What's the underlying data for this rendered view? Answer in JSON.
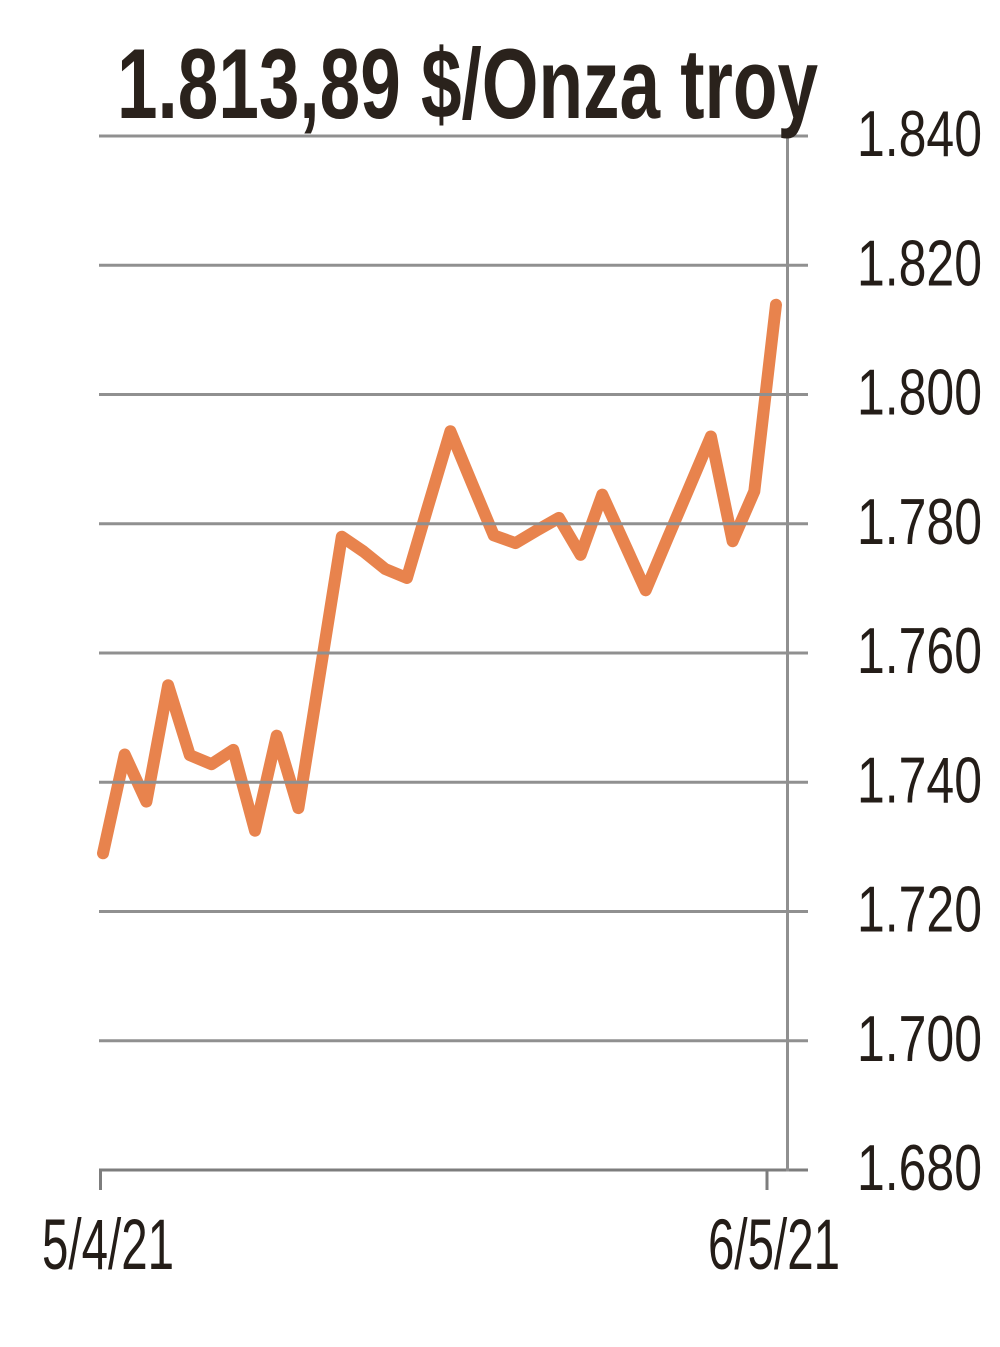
{
  "chart_data": {
    "type": "line",
    "title": "1.813,89 $/Onza troy",
    "unit_label": "$/Onza troy",
    "current_value_label": "1.813,89",
    "x_tick_labels": [
      "5/4/21",
      "6/5/21"
    ],
    "y_tick_labels": [
      "1.840",
      "1.820",
      "1.800",
      "1.780",
      "1.760",
      "1.740",
      "1.720",
      "1.700",
      "1.680"
    ],
    "ylim": [
      1680,
      1840
    ],
    "grid": true,
    "legend_position": "none",
    "series": [
      {
        "values": [
          1729,
          1744.3,
          1737,
          1755,
          1744.2,
          1742.8,
          1745,
          1732.5,
          1747.2,
          1736,
          1757,
          1778,
          1775.7,
          1773,
          1771.6,
          1783,
          1794.3,
          1786.2,
          1778.2,
          1777,
          1779,
          1780.9,
          1775.2,
          1784.5,
          1777.1,
          1769.7,
          1777.7,
          1785.6,
          1793.5,
          1777.3,
          1785,
          1813.89
        ]
      }
    ],
    "colors": {
      "line": "#E8834D",
      "grid": "#909090",
      "axis": "#7D7D7D",
      "title_text": "#2A221C",
      "tick_text": "#241D18",
      "background": "#FFFFFF"
    }
  }
}
